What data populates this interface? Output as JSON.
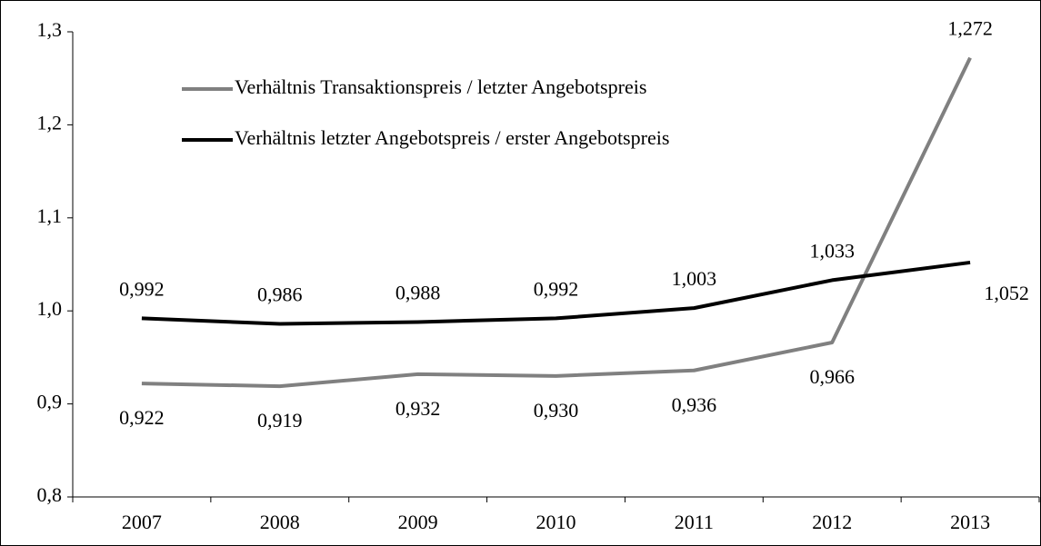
{
  "chart_data": {
    "type": "line",
    "categories": [
      "2007",
      "2008",
      "2009",
      "2010",
      "2011",
      "2012",
      "2013"
    ],
    "series": [
      {
        "name": "Verhältnis Transaktionspreis / letzter Angebotspreis",
        "color": "#808080",
        "values": [
          0.922,
          0.919,
          0.932,
          0.93,
          0.936,
          0.966,
          1.272
        ],
        "value_labels": [
          "0,922",
          "0,919",
          "0,932",
          "0,930",
          "0,936",
          "0,966",
          "1,272"
        ]
      },
      {
        "name": "Verhältnis letzter Angebotspreis / erster Angebotspreis",
        "color": "#000000",
        "values": [
          0.992,
          0.986,
          0.988,
          0.992,
          1.003,
          1.033,
          1.052
        ],
        "value_labels": [
          "0,992",
          "0,986",
          "0,988",
          "0,992",
          "1,003",
          "1,033",
          "1,052"
        ]
      }
    ],
    "ylim": [
      0.8,
      1.3
    ],
    "yticks": [
      {
        "value": 0.8,
        "label": "0,8"
      },
      {
        "value": 0.9,
        "label": "0,9"
      },
      {
        "value": 1.0,
        "label": "1,0"
      },
      {
        "value": 1.1,
        "label": "1,1"
      },
      {
        "value": 1.2,
        "label": "1,2"
      },
      {
        "value": 1.3,
        "label": "1,3"
      }
    ],
    "grid": false,
    "legend": "upper left"
  }
}
